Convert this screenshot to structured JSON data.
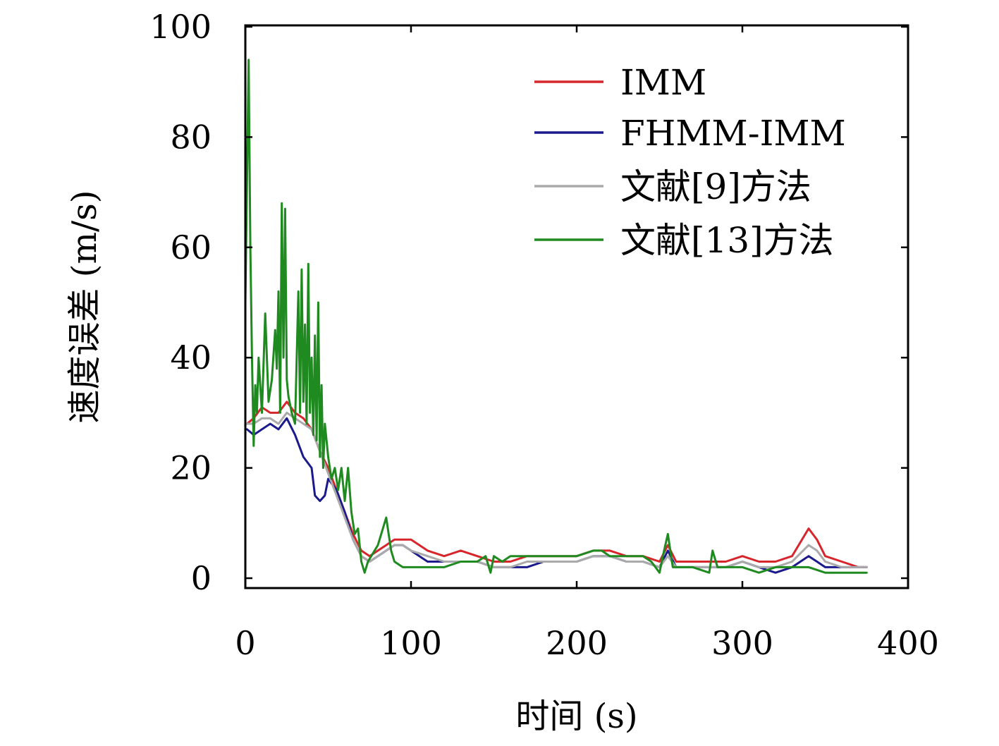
{
  "chart_data": {
    "type": "line",
    "title": "",
    "xlabel": "时间 (s)",
    "ylabel": "速度误差 (m/s)",
    "xlim": [
      0,
      400
    ],
    "ylim": [
      0,
      100
    ],
    "xticks": [
      0,
      100,
      200,
      300,
      400
    ],
    "yticks": [
      0,
      20,
      40,
      60,
      80,
      100
    ],
    "grid": false,
    "legend_position": "top-right",
    "series": [
      {
        "name": "IMM",
        "color": "#d7262b",
        "x": [
          1,
          5,
          10,
          15,
          20,
          25,
          30,
          35,
          40,
          45,
          50,
          55,
          60,
          65,
          70,
          75,
          80,
          85,
          90,
          95,
          100,
          110,
          120,
          130,
          140,
          150,
          160,
          170,
          180,
          190,
          200,
          210,
          220,
          230,
          240,
          250,
          255,
          260,
          270,
          280,
          290,
          300,
          310,
          320,
          330,
          340,
          345,
          350,
          360,
          370,
          375
        ],
        "y": [
          28,
          29,
          31,
          30,
          30,
          32,
          30,
          29,
          27,
          23,
          20,
          16,
          12,
          8,
          5,
          4,
          5,
          6,
          7,
          7,
          7,
          5,
          4,
          5,
          4,
          3,
          3,
          4,
          4,
          4,
          4,
          5,
          5,
          4,
          4,
          3,
          6,
          3,
          3,
          3,
          3,
          4,
          3,
          3,
          4,
          9,
          7,
          4,
          3,
          2,
          2
        ]
      },
      {
        "name": "FHMM-IMM",
        "color": "#1a1a8c",
        "x": [
          1,
          5,
          10,
          15,
          20,
          25,
          30,
          35,
          40,
          42,
          45,
          48,
          50,
          55,
          60,
          65,
          70,
          75,
          80,
          85,
          90,
          95,
          100,
          110,
          120,
          130,
          140,
          150,
          160,
          170,
          180,
          190,
          200,
          210,
          220,
          230,
          240,
          250,
          255,
          260,
          270,
          280,
          290,
          300,
          310,
          320,
          330,
          340,
          345,
          350,
          360,
          370,
          375
        ],
        "y": [
          27,
          26,
          27,
          28,
          27,
          29,
          26,
          22,
          20,
          15,
          14,
          15,
          18,
          16,
          12,
          7,
          4,
          3,
          4,
          5,
          6,
          6,
          5,
          3,
          3,
          3,
          3,
          2,
          2,
          2,
          3,
          3,
          3,
          4,
          4,
          3,
          3,
          2,
          5,
          2,
          2,
          2,
          2,
          3,
          2,
          1,
          2,
          4,
          3,
          2,
          2,
          2,
          2
        ]
      },
      {
        "name": "文献[9]方法",
        "color": "#aaaaaa",
        "x": [
          1,
          5,
          10,
          15,
          20,
          25,
          30,
          35,
          40,
          45,
          50,
          55,
          60,
          65,
          70,
          75,
          80,
          85,
          90,
          95,
          100,
          110,
          120,
          130,
          140,
          150,
          160,
          170,
          180,
          190,
          200,
          210,
          220,
          230,
          240,
          250,
          255,
          260,
          270,
          280,
          290,
          300,
          310,
          320,
          330,
          340,
          345,
          350,
          360,
          370,
          375
        ],
        "y": [
          28,
          28,
          29,
          29,
          28,
          30,
          29,
          28,
          27,
          23,
          19,
          15,
          11,
          7,
          4,
          3,
          4,
          5,
          6,
          6,
          5,
          4,
          3,
          3,
          3,
          2,
          2,
          3,
          3,
          3,
          3,
          4,
          4,
          3,
          3,
          2,
          4,
          2,
          2,
          2,
          2,
          3,
          2,
          2,
          3,
          6,
          5,
          3,
          2,
          2,
          2
        ]
      },
      {
        "name": "文献[13]方法",
        "color": "#1f8a1f",
        "x": [
          0,
          2,
          3,
          4,
          5,
          6,
          7,
          8,
          10,
          12,
          14,
          16,
          18,
          19,
          20,
          21,
          22,
          23,
          24,
          25,
          26,
          28,
          30,
          32,
          33,
          34,
          35,
          36,
          37,
          38,
          39,
          40,
          41,
          42,
          43,
          44,
          45,
          46,
          47,
          48,
          50,
          52,
          54,
          56,
          58,
          60,
          62,
          64,
          66,
          68,
          70,
          72,
          74,
          76,
          80,
          85,
          88,
          90,
          95,
          100,
          110,
          120,
          130,
          140,
          145,
          148,
          150,
          155,
          160,
          170,
          180,
          190,
          200,
          210,
          215,
          220,
          230,
          240,
          245,
          250,
          252,
          255,
          258,
          260,
          270,
          280,
          282,
          285,
          290,
          300,
          310,
          320,
          330,
          340,
          350,
          360,
          370,
          375
        ],
        "y": [
          50,
          94,
          60,
          40,
          24,
          35,
          30,
          40,
          30,
          48,
          32,
          36,
          45,
          38,
          52,
          30,
          68,
          40,
          67,
          36,
          33,
          30,
          28,
          52,
          30,
          56,
          32,
          46,
          28,
          57,
          30,
          40,
          26,
          44,
          25,
          50,
          22,
          35,
          20,
          28,
          22,
          18,
          20,
          16,
          20,
          14,
          20,
          12,
          8,
          9,
          3,
          1,
          3,
          4,
          6,
          11,
          5,
          3,
          2,
          2,
          2,
          2,
          3,
          3,
          4,
          1,
          4,
          3,
          4,
          4,
          4,
          4,
          4,
          5,
          5,
          4,
          4,
          4,
          3,
          1,
          4,
          8,
          2,
          2,
          2,
          1,
          5,
          2,
          2,
          2,
          1,
          2,
          2,
          2,
          1,
          1,
          1,
          1
        ]
      }
    ]
  }
}
